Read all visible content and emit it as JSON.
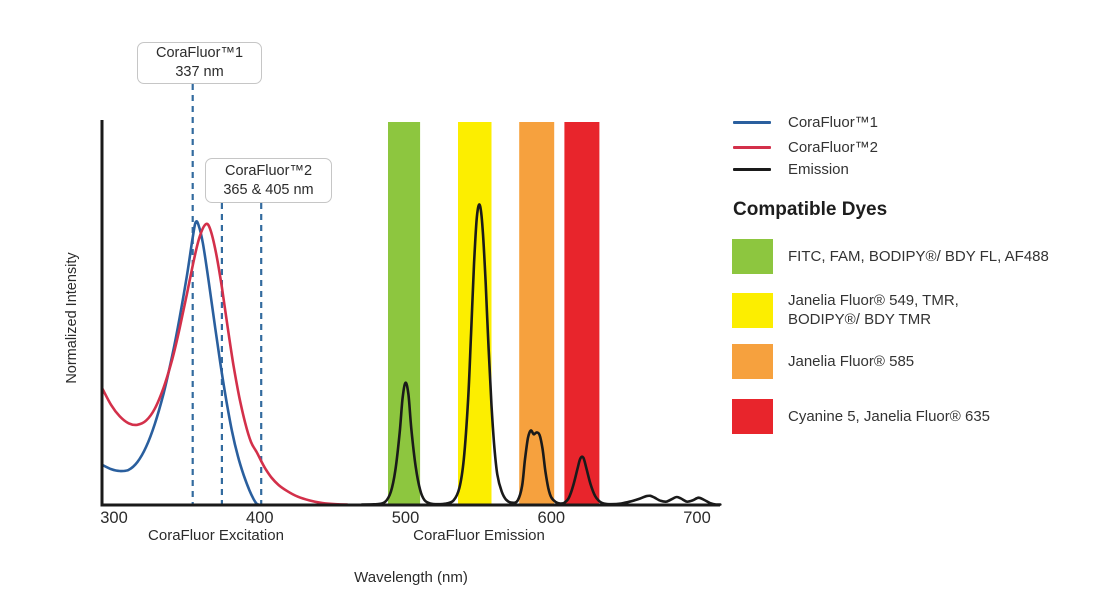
{
  "axes": {
    "y_label": "Normalized Intensity",
    "x_label": "Wavelength (nm)",
    "x_ticks": [
      300,
      400,
      500,
      600,
      700
    ],
    "x_section_labels": [
      "CoraFluor Excitation",
      "CoraFluor Emission"
    ]
  },
  "annotations": [
    {
      "title": "CoraFluor™1",
      "value": "337 nm"
    },
    {
      "title": "CoraFluor™2",
      "value": "365 & 405 nm"
    }
  ],
  "legend": {
    "items": [
      {
        "label": "CoraFluor™1",
        "color": "#2A5F9E"
      },
      {
        "label": "CoraFluor™2",
        "color": "#D3304A"
      },
      {
        "label": "Emission",
        "color": "#1A1A1A"
      }
    ]
  },
  "compatible_dyes": {
    "title": "Compatible Dyes",
    "items": [
      {
        "id": "green",
        "color": "#8DC63F",
        "lines": [
          "FITC, FAM, BODIPY®/ BDY FL, AF488"
        ]
      },
      {
        "id": "yellow",
        "color": "#FCEE00",
        "lines": [
          "Janelia Fluor® 549, TMR,",
          "BODIPY®/ BDY TMR"
        ]
      },
      {
        "id": "orange",
        "color": "#F6A13E",
        "lines": [
          "Janelia Fluor® 585"
        ]
      },
      {
        "id": "red",
        "color": "#E8252C",
        "lines": [
          "Cyanine 5, Janelia Fluor® 635"
        ]
      }
    ]
  },
  "chart_data": {
    "type": "line",
    "xlabel": "Wavelength (nm)",
    "ylabel": "Normalized Intensity",
    "xlim": [
      292,
      730
    ],
    "ylim": [
      0,
      1
    ],
    "x_ticks": [
      300,
      400,
      500,
      600,
      700
    ],
    "grid": false,
    "legend_position": "right",
    "series": [
      {
        "name": "CoraFluor™1",
        "color": "#2A5F9E",
        "points": [
          [
            292,
            0.105
          ],
          [
            298,
            0.094
          ],
          [
            304,
            0.089
          ],
          [
            310,
            0.092
          ],
          [
            316,
            0.112
          ],
          [
            322,
            0.152
          ],
          [
            328,
            0.212
          ],
          [
            334,
            0.292
          ],
          [
            340,
            0.392
          ],
          [
            345,
            0.49
          ],
          [
            350,
            0.6
          ],
          [
            354,
            0.7
          ],
          [
            356,
            0.74
          ],
          [
            358,
            0.733
          ],
          [
            361,
            0.685
          ],
          [
            365,
            0.585
          ],
          [
            369,
            0.475
          ],
          [
            373,
            0.37
          ],
          [
            377,
            0.275
          ],
          [
            381,
            0.192
          ],
          [
            385,
            0.128
          ],
          [
            389,
            0.078
          ],
          [
            393,
            0.038
          ],
          [
            396,
            0.014
          ],
          [
            398,
            0.003
          ],
          [
            399,
            0
          ]
        ]
      },
      {
        "name": "CoraFluor™2",
        "color": "#D3304A",
        "points": [
          [
            292,
            0.305
          ],
          [
            298,
            0.262
          ],
          [
            304,
            0.232
          ],
          [
            310,
            0.214
          ],
          [
            316,
            0.21
          ],
          [
            322,
            0.221
          ],
          [
            328,
            0.252
          ],
          [
            334,
            0.307
          ],
          [
            340,
            0.382
          ],
          [
            345,
            0.462
          ],
          [
            350,
            0.552
          ],
          [
            355,
            0.645
          ],
          [
            359,
            0.705
          ],
          [
            363,
            0.735
          ],
          [
            366,
            0.722
          ],
          [
            370,
            0.66
          ],
          [
            374,
            0.57
          ],
          [
            378,
            0.465
          ],
          [
            382,
            0.365
          ],
          [
            386,
            0.282
          ],
          [
            390,
            0.215
          ],
          [
            394,
            0.165
          ],
          [
            398,
            0.138
          ],
          [
            401,
            0.115
          ],
          [
            404,
            0.094
          ],
          [
            408,
            0.072
          ],
          [
            413,
            0.052
          ],
          [
            419,
            0.036
          ],
          [
            426,
            0.022
          ],
          [
            434,
            0.012
          ],
          [
            443,
            0.005
          ],
          [
            452,
            0.002
          ],
          [
            460,
            0
          ]
        ]
      },
      {
        "name": "Emission",
        "color": "#1A1A1A",
        "points": [
          [
            470,
            0
          ],
          [
            480,
            0.002
          ],
          [
            486,
            0.008
          ],
          [
            490,
            0.035
          ],
          [
            493,
            0.09
          ],
          [
            496,
            0.19
          ],
          [
            498,
            0.28
          ],
          [
            500,
            0.32
          ],
          [
            502,
            0.29
          ],
          [
            504,
            0.2
          ],
          [
            507,
            0.1
          ],
          [
            510,
            0.04
          ],
          [
            513,
            0.013
          ],
          [
            517,
            0.004
          ],
          [
            522,
            0.002
          ],
          [
            528,
            0.004
          ],
          [
            533,
            0.012
          ],
          [
            537,
            0.045
          ],
          [
            540,
            0.12
          ],
          [
            543,
            0.28
          ],
          [
            545,
            0.45
          ],
          [
            547,
            0.63
          ],
          [
            549,
            0.755
          ],
          [
            551,
            0.785
          ],
          [
            553,
            0.72
          ],
          [
            555,
            0.58
          ],
          [
            557,
            0.41
          ],
          [
            559,
            0.26
          ],
          [
            561,
            0.15
          ],
          [
            563,
            0.08
          ],
          [
            566,
            0.035
          ],
          [
            569,
            0.014
          ],
          [
            573,
            0.006
          ],
          [
            577,
            0.012
          ],
          [
            580,
            0.05
          ],
          [
            582,
            0.12
          ],
          [
            584,
            0.175
          ],
          [
            586,
            0.195
          ],
          [
            588,
            0.185
          ],
          [
            590,
            0.19
          ],
          [
            592,
            0.183
          ],
          [
            594,
            0.148
          ],
          [
            596,
            0.088
          ],
          [
            598,
            0.044
          ],
          [
            600,
            0.02
          ],
          [
            603,
            0.008
          ],
          [
            606,
            0.004
          ],
          [
            609,
            0.006
          ],
          [
            612,
            0.018
          ],
          [
            615,
            0.05
          ],
          [
            618,
            0.095
          ],
          [
            620,
            0.122
          ],
          [
            622,
            0.124
          ],
          [
            624,
            0.098
          ],
          [
            627,
            0.054
          ],
          [
            630,
            0.024
          ],
          [
            633,
            0.01
          ],
          [
            636,
            0.004
          ],
          [
            641,
            0.002
          ],
          [
            648,
            0.004
          ],
          [
            655,
            0.01
          ],
          [
            661,
            0.017
          ],
          [
            665,
            0.023
          ],
          [
            668,
            0.024
          ],
          [
            671,
            0.019
          ],
          [
            675,
            0.011
          ],
          [
            679,
            0.009
          ],
          [
            683,
            0.016
          ],
          [
            686,
            0.021
          ],
          [
            689,
            0.017
          ],
          [
            693,
            0.009
          ],
          [
            697,
            0.012
          ],
          [
            701,
            0.019
          ],
          [
            705,
            0.013
          ],
          [
            709,
            0.005
          ],
          [
            713,
            0.001
          ],
          [
            716,
            0
          ]
        ]
      }
    ],
    "excitation_markers": [
      {
        "series": "CoraFluor™1",
        "labeled_value": "337 nm",
        "drawn_nm": [
          354
        ]
      },
      {
        "series": "CoraFluor™2",
        "labeled_value": "365 & 405 nm",
        "drawn_nm": [
          374,
          401
        ]
      }
    ],
    "filter_bands": [
      {
        "id": "green",
        "range_nm": [
          488,
          510
        ],
        "color": "#8DC63F"
      },
      {
        "id": "yellow",
        "range_nm": [
          536,
          559
        ],
        "color": "#FCEE00"
      },
      {
        "id": "orange",
        "range_nm": [
          578,
          602
        ],
        "color": "#F6A13E"
      },
      {
        "id": "red",
        "range_nm": [
          609,
          633
        ],
        "color": "#E8252C"
      }
    ]
  }
}
